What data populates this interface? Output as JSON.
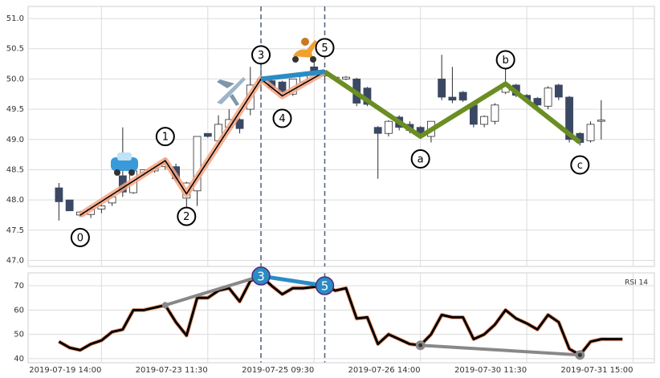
{
  "chart_data": [
    {
      "type": "candlestick",
      "x": [
        0,
        1,
        2,
        3,
        4,
        5,
        6,
        7,
        8,
        9,
        10,
        11,
        12,
        13,
        14,
        15,
        16,
        17,
        18,
        19,
        20,
        21,
        22,
        23,
        24,
        25,
        26,
        27,
        28,
        29,
        30,
        31,
        32,
        33,
        34,
        35,
        36,
        37,
        38,
        39,
        40,
        41,
        42,
        43,
        44,
        45,
        46,
        47,
        48,
        49,
        50,
        51
      ],
      "open": [
        48.2,
        48.0,
        47.75,
        47.76,
        47.85,
        47.95,
        48.4,
        48.12,
        48.45,
        48.48,
        48.55,
        48.55,
        48.03,
        48.15,
        49.1,
        48.98,
        49.2,
        49.33,
        49.5,
        49.95,
        49.97,
        49.95,
        49.75,
        49.95,
        50.2,
        50.05,
        50.0,
        50.0,
        50.0,
        49.85,
        49.2,
        49.1,
        49.37,
        49.25,
        49.2,
        49.05,
        50.0,
        49.7,
        49.78,
        49.57,
        49.25,
        49.3,
        49.78,
        49.9,
        49.73,
        49.68,
        49.55,
        49.9,
        49.7,
        49.1,
        48.98,
        49.3
      ],
      "high": [
        48.28,
        48.0,
        47.82,
        47.9,
        47.95,
        48.1,
        49.2,
        48.5,
        48.5,
        48.55,
        48.7,
        48.6,
        48.3,
        49.05,
        49.1,
        49.4,
        49.5,
        49.35,
        50.2,
        50.3,
        50.0,
        49.97,
        50.0,
        50.1,
        50.3,
        50.15,
        50.05,
        50.05,
        50.02,
        49.87,
        49.22,
        49.32,
        49.4,
        49.3,
        49.22,
        49.3,
        50.4,
        50.2,
        49.8,
        49.6,
        49.4,
        49.6,
        50.3,
        49.92,
        49.75,
        49.7,
        49.88,
        49.92,
        49.72,
        49.12,
        49.3,
        49.65
      ],
      "low": [
        47.66,
        47.82,
        47.72,
        47.7,
        47.78,
        47.9,
        48.05,
        48.1,
        48.4,
        48.45,
        48.5,
        48.3,
        47.85,
        47.9,
        49.03,
        48.9,
        49.15,
        49.1,
        49.4,
        49.85,
        49.8,
        49.7,
        49.72,
        49.9,
        50.05,
        50.0,
        49.98,
        49.98,
        49.55,
        49.55,
        48.35,
        49.05,
        49.15,
        49.1,
        49.05,
        48.95,
        49.65,
        49.6,
        49.62,
        49.2,
        49.2,
        49.25,
        49.75,
        49.7,
        49.6,
        49.5,
        49.5,
        49.65,
        48.95,
        48.9,
        48.95,
        49.0
      ],
      "close": [
        47.97,
        47.82,
        47.8,
        47.85,
        47.9,
        48.05,
        48.13,
        48.48,
        48.5,
        48.52,
        48.6,
        48.35,
        48.28,
        49.05,
        49.05,
        49.25,
        49.33,
        49.18,
        49.9,
        50.0,
        49.85,
        49.78,
        50.0,
        50.05,
        50.07,
        50.1,
        50.03,
        50.03,
        49.6,
        49.58,
        49.1,
        49.3,
        49.2,
        49.15,
        49.1,
        49.3,
        49.7,
        49.65,
        49.65,
        49.25,
        49.38,
        49.57,
        49.9,
        49.73,
        49.65,
        49.57,
        49.85,
        49.7,
        49.0,
        48.95,
        49.25,
        49.32
      ],
      "up_color": "#ffffff",
      "down_color": "#3a4863",
      "edge_color": "#2c2c2c",
      "xlim": [
        -2.9,
        56
      ],
      "xticks": [
        4,
        14,
        24,
        34,
        44,
        54
      ],
      "ylim": [
        46.9,
        51.2
      ],
      "yticks": [
        {
          "value": 47,
          "label": "47.0"
        },
        47.5,
        {
          "value": 48,
          "label": "48.0"
        },
        48.5,
        {
          "value": 49,
          "label": "49.0"
        },
        49.5,
        {
          "value": 50,
          "label": "50.0"
        },
        50.5,
        {
          "value": 51,
          "label": "51.0"
        }
      ],
      "grid": true,
      "waves": [
        {
          "labels": [
            "0",
            "1",
            "2",
            "3",
            "4",
            "5"
          ],
          "x": [
            2,
            10,
            12,
            19,
            21,
            25
          ],
          "y": [
            47.75,
            48.65,
            48.1,
            50.0,
            49.72,
            50.12
          ],
          "color": "#000000",
          "highlight": "#f4a582"
        },
        {
          "labels": [
            null,
            "a",
            "b",
            "c"
          ],
          "x": [
            25,
            34,
            42,
            49
          ],
          "y": [
            50.12,
            49.05,
            49.92,
            48.95
          ],
          "color": "#6b8e23"
        }
      ],
      "link": {
        "x": [
          19,
          25
        ],
        "y": [
          50.0,
          50.12
        ],
        "color": "#2b8cc4"
      },
      "vlines": [
        19,
        25
      ]
    },
    {
      "type": "line",
      "x": [
        0,
        1,
        2,
        3,
        4,
        5,
        6,
        7,
        8,
        9,
        10,
        11,
        12,
        13,
        14,
        15,
        16,
        17,
        18,
        19,
        20,
        21,
        22,
        23,
        24,
        25,
        26,
        27,
        28,
        29,
        30,
        31,
        32,
        33,
        34,
        35,
        36,
        37,
        38,
        39,
        40,
        41,
        42,
        43,
        44,
        45,
        46,
        47,
        48,
        49,
        50,
        51,
        52,
        53
      ],
      "series": [
        {
          "name": "RSI 14",
          "color": "#000000",
          "halo": "#f4a582",
          "values": [
            47,
            44.5,
            43.5,
            46,
            47.5,
            51,
            52,
            60,
            60,
            61,
            62,
            55,
            49.5,
            65,
            65,
            68,
            69,
            63.5,
            72,
            74,
            70,
            66.5,
            69,
            69,
            69.5,
            70,
            68,
            69,
            56.5,
            57,
            46,
            50,
            48,
            46,
            45.5,
            50,
            58,
            57,
            57,
            48,
            50,
            54,
            60,
            56.5,
            54.5,
            52,
            58,
            55,
            44,
            41.5,
            47,
            48,
            48,
            48
          ]
        }
      ],
      "xlim": [
        -2.9,
        56
      ],
      "xticks": [
        {
          "value": 4,
          "label": "2019-07-19 14:00"
        },
        {
          "value": 14,
          "label": "2019-07-23 11:30"
        },
        {
          "value": 24,
          "label": "2019-07-25 09:30"
        },
        {
          "value": 34,
          "label": "2019-07-26 14:00"
        },
        {
          "value": 44,
          "label": "2019-07-30 11:30"
        },
        {
          "value": 54,
          "label": "2019-07-31 15:00"
        }
      ],
      "ylim": [
        38.3,
        75.3
      ],
      "yticks": [
        40,
        50,
        60,
        70
      ],
      "grid": true,
      "legend": "upper right",
      "trendlines": [
        {
          "x": [
            10,
            19
          ],
          "y": [
            62,
            74
          ],
          "color": "#888888"
        },
        {
          "x": [
            19,
            25
          ],
          "y": [
            74,
            70
          ],
          "color": "#2b8cc4",
          "labels": [
            "3",
            "5"
          ]
        },
        {
          "x": [
            34,
            49
          ],
          "y": [
            45.5,
            41.5
          ],
          "color": "#888888"
        }
      ]
    }
  ]
}
